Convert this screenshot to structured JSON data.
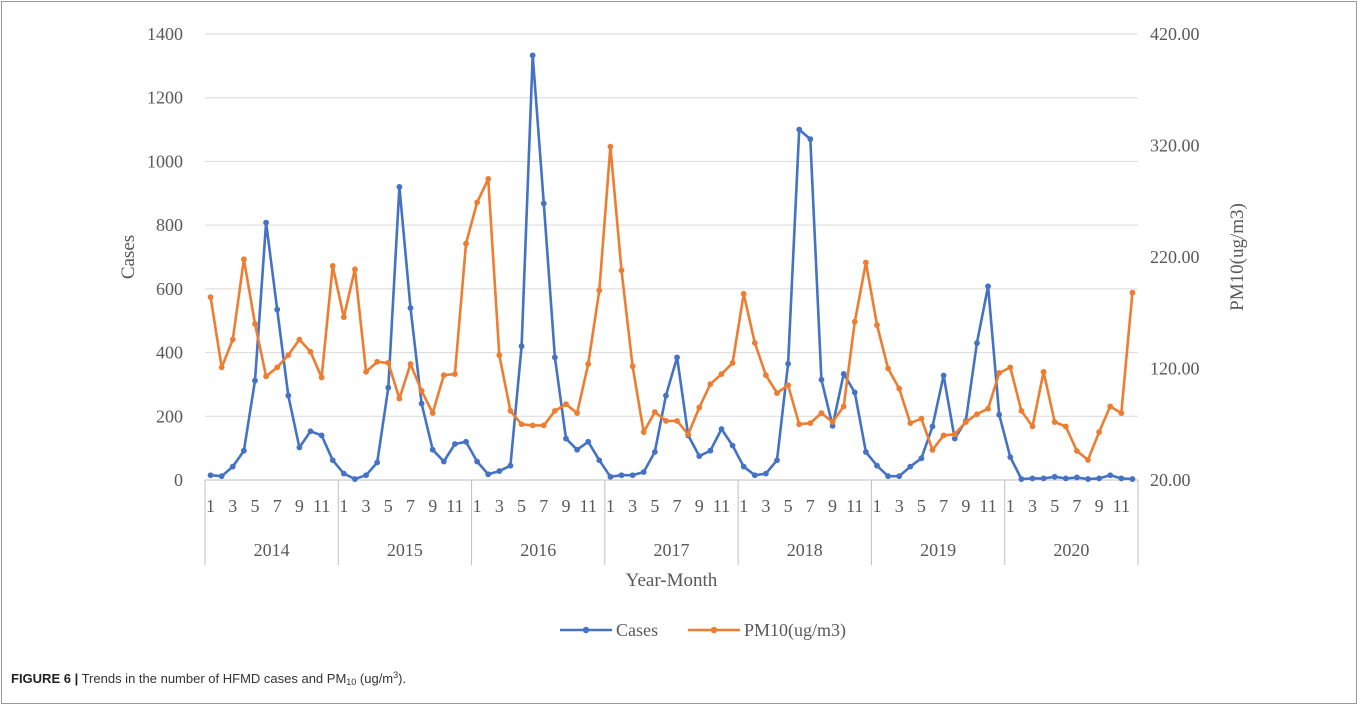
{
  "chart_data": {
    "type": "line",
    "xlabel": "Year-Month",
    "ylabel": "Cases",
    "y2label": "PM10(ug/m3)",
    "ylim": [
      0,
      1400
    ],
    "y2lim": [
      20,
      420
    ],
    "yticks": [
      "0",
      "200",
      "400",
      "600",
      "800",
      "1000",
      "1200",
      "1400"
    ],
    "y2ticks": [
      "20.00",
      "120.00",
      "220.00",
      "320.00",
      "420.00"
    ],
    "years": [
      "2014",
      "2015",
      "2016",
      "2017",
      "2018",
      "2019",
      "2020"
    ],
    "month_tick_labels": [
      "1",
      "3",
      "5",
      "7",
      "9",
      "11"
    ],
    "grid": true,
    "legend_position": "bottom",
    "series": [
      {
        "name": "Cases",
        "axis": "left",
        "color": "#4472C4",
        "values": [
          15,
          12,
          42,
          92,
          312,
          808,
          535,
          265,
          102,
          153,
          140,
          62,
          20,
          3,
          15,
          55,
          290,
          920,
          540,
          240,
          95,
          58,
          113,
          120,
          58,
          18,
          28,
          45,
          420,
          1333,
          868,
          385,
          130,
          95,
          120,
          62,
          10,
          15,
          15,
          25,
          88,
          265,
          385,
          140,
          75,
          92,
          160,
          108,
          42,
          15,
          20,
          62,
          365,
          1100,
          1070,
          315,
          170,
          333,
          275,
          88,
          45,
          12,
          12,
          42,
          68,
          168,
          328,
          130,
          185,
          430,
          608,
          205,
          72,
          3,
          5,
          5,
          10,
          5,
          8,
          3,
          5,
          15,
          5,
          3
        ]
      },
      {
        "name": "PM10(ug/m3)",
        "axis": "right",
        "color": "#ED7D31",
        "values": [
          184,
          121,
          146,
          218,
          160,
          113,
          121,
          132,
          146,
          135,
          112,
          212,
          166,
          209,
          117,
          126,
          125,
          93,
          124,
          100,
          80,
          114,
          115,
          232,
          269,
          290,
          132,
          82,
          70,
          69,
          69,
          82,
          88,
          80,
          124,
          190,
          319,
          208,
          122,
          63,
          81,
          73,
          73,
          61,
          85,
          106,
          115,
          125,
          187,
          143,
          114,
          98,
          105,
          70,
          71,
          80,
          72,
          86,
          162,
          215,
          159,
          120,
          102,
          71,
          75,
          47,
          60,
          61,
          72,
          79,
          84,
          116,
          121,
          82,
          68,
          117,
          72,
          68,
          46,
          38,
          63,
          86,
          80,
          188
        ]
      }
    ]
  },
  "caption": {
    "lead": "FIGURE 6 |",
    "text_before_sub": "Trends in the number of HFMD cases and PM",
    "sub": "10",
    "text_mid": " (ug/m",
    "sup": "3",
    "text_end": ")."
  }
}
